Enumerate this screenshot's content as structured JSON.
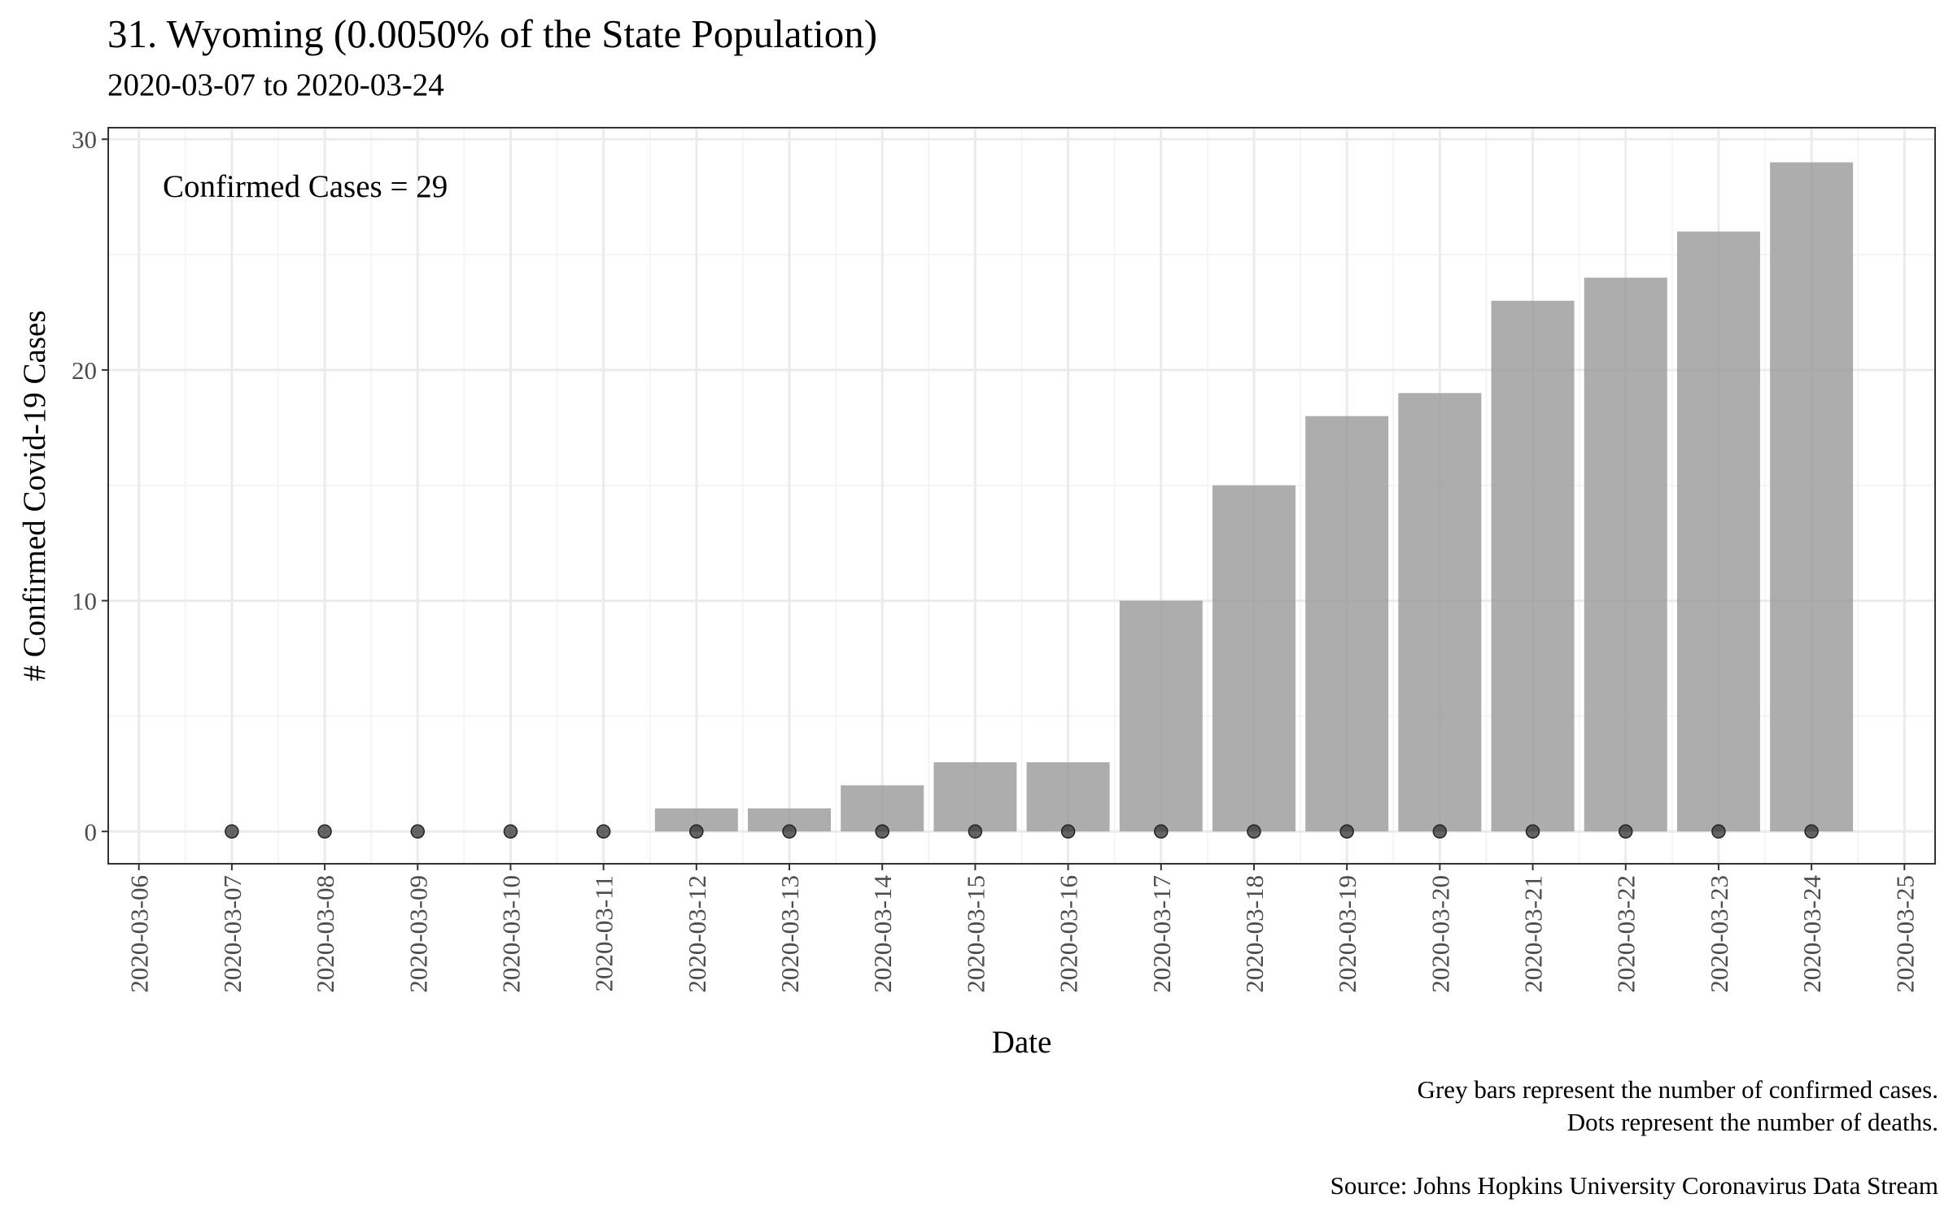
{
  "chart_data": {
    "type": "bar",
    "title": "31. Wyoming (0.0050% of the State Population)",
    "subtitle": "2020-03-07 to 2020-03-24",
    "xlabel": "Date",
    "ylabel": "# Confirmed Covid-19 Cases",
    "annotation": "Confirmed Cases = 29",
    "x_ticks": [
      "2020-03-06",
      "2020-03-07",
      "2020-03-08",
      "2020-03-09",
      "2020-03-10",
      "2020-03-11",
      "2020-03-12",
      "2020-03-13",
      "2020-03-14",
      "2020-03-15",
      "2020-03-16",
      "2020-03-17",
      "2020-03-18",
      "2020-03-19",
      "2020-03-20",
      "2020-03-21",
      "2020-03-22",
      "2020-03-23",
      "2020-03-24",
      "2020-03-25"
    ],
    "y_ticks": [
      0,
      10,
      20,
      30
    ],
    "ylim": [
      -1.4,
      30.5
    ],
    "xlim": [
      "2020-03-05.67",
      "2020-03-25.33"
    ],
    "grid": true,
    "series": [
      {
        "type": "bar",
        "x": [
          "2020-03-07",
          "2020-03-08",
          "2020-03-09",
          "2020-03-10",
          "2020-03-11",
          "2020-03-12",
          "2020-03-13",
          "2020-03-14",
          "2020-03-15",
          "2020-03-16",
          "2020-03-17",
          "2020-03-18",
          "2020-03-19",
          "2020-03-20",
          "2020-03-21",
          "2020-03-22",
          "2020-03-23",
          "2020-03-24"
        ],
        "values": [
          0,
          0,
          0,
          0,
          0,
          1,
          1,
          2,
          3,
          3,
          10,
          15,
          18,
          19,
          23,
          24,
          26,
          29
        ],
        "color": "#999999"
      },
      {
        "type": "scatter",
        "x": [
          "2020-03-07",
          "2020-03-08",
          "2020-03-09",
          "2020-03-10",
          "2020-03-11",
          "2020-03-12",
          "2020-03-13",
          "2020-03-14",
          "2020-03-15",
          "2020-03-16",
          "2020-03-17",
          "2020-03-18",
          "2020-03-19",
          "2020-03-20",
          "2020-03-21",
          "2020-03-22",
          "2020-03-23",
          "2020-03-24"
        ],
        "values": [
          0,
          0,
          0,
          0,
          0,
          0,
          0,
          0,
          0,
          0,
          0,
          0,
          0,
          0,
          0,
          0,
          0,
          0
        ],
        "color": "#333333"
      }
    ],
    "captions": [
      "Grey bars represent the number of confirmed cases.",
      "Dots represent the number of deaths.",
      "Source: Johns Hopkins University Coronavirus Data Stream"
    ]
  }
}
